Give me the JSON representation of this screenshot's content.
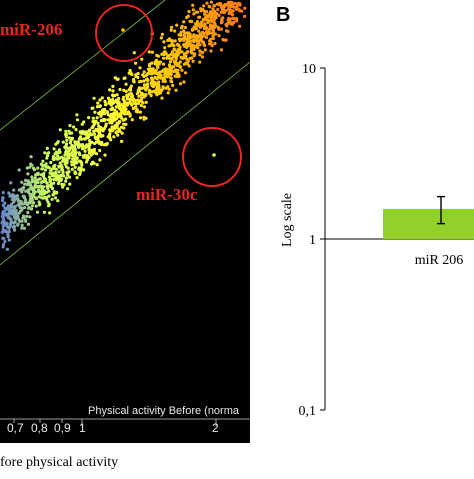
{
  "panel_a": {
    "labels": {
      "mir206": "miR-206",
      "mir30c": "miR-30c"
    },
    "x_axis_title": "Physical activity Before  (norma",
    "x_ticks": [
      "0,7",
      "0,8",
      "0,9",
      "1",
      "2"
    ],
    "caption": "fore physical activity",
    "colors": {
      "background": "#000000",
      "highlight_circle": "#e8251f",
      "band_lines": "#7fbf3f"
    }
  },
  "panel_b": {
    "letter": "B",
    "y_axis_label": "Log scale",
    "y_ticks": [
      "10",
      "1",
      "0,1"
    ]
  },
  "chart_data": [
    {
      "type": "scatter",
      "xlabel": "Physical activity Before  (norma",
      "x_scale": "log",
      "x_ticks": [
        0.7,
        0.8,
        0.9,
        1,
        2
      ],
      "annotations": [
        "miR-206",
        "miR-30c"
      ],
      "highlighted_points": [
        {
          "name": "miR-206",
          "highlight": "red circle, above upper band line"
        },
        {
          "name": "miR-30c",
          "highlight": "red circle, below lower band line"
        }
      ],
      "color_gradient": [
        "#3a4cff",
        "#c8ff60",
        "#ffff33",
        "#ffc000",
        "#ff7a1a"
      ],
      "grid": false
    },
    {
      "type": "bar",
      "categories": [
        "miR 206"
      ],
      "values": [
        1.5
      ],
      "error": [
        0.27
      ],
      "ylabel": "Log scale",
      "y_scale": "log",
      "ylim": [
        0.1,
        10
      ],
      "y_ticks": [
        0.1,
        1,
        10
      ],
      "y_tick_labels": [
        "0,1",
        "1",
        "10"
      ],
      "bar_color": "#92d02a",
      "grid": false
    }
  ]
}
